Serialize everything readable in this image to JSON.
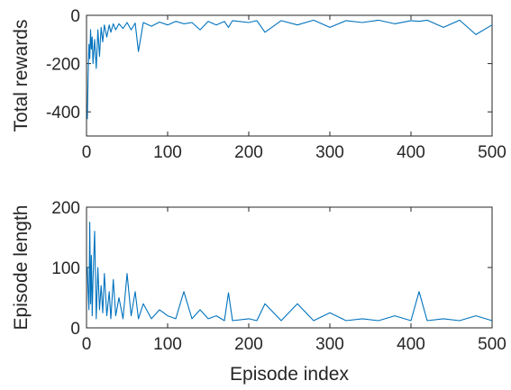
{
  "chart_data": [
    {
      "type": "line",
      "title": "",
      "xlabel": "",
      "ylabel": "Total rewards",
      "xlim": [
        0,
        500
      ],
      "ylim": [
        -500,
        0
      ],
      "xticks": [
        0,
        100,
        200,
        300,
        400,
        500
      ],
      "yticks": [
        -400,
        -200,
        0
      ],
      "grid": false,
      "color": "#0072BD",
      "series": [
        {
          "x": [
            1,
            2,
            3,
            4,
            5,
            6,
            7,
            8,
            10,
            12,
            14,
            16,
            18,
            20,
            22,
            25,
            28,
            30,
            33,
            36,
            40,
            45,
            50,
            55,
            60,
            64,
            70,
            80,
            90,
            100,
            110,
            120,
            130,
            140,
            150,
            160,
            170,
            175,
            180,
            200,
            210,
            220,
            240,
            260,
            280,
            300,
            320,
            340,
            360,
            380,
            400,
            410,
            420,
            440,
            460,
            480,
            500
          ],
          "y": [
            -430,
            -250,
            -120,
            -180,
            -60,
            -140,
            -90,
            -200,
            -100,
            -220,
            -60,
            -170,
            -50,
            -110,
            -40,
            -90,
            -40,
            -70,
            -35,
            -60,
            -35,
            -55,
            -30,
            -60,
            -32,
            -150,
            -30,
            -45,
            -28,
            -40,
            -25,
            -35,
            -30,
            -60,
            -25,
            -40,
            -25,
            -50,
            -22,
            -30,
            -22,
            -70,
            -22,
            -40,
            -20,
            -50,
            -22,
            -30,
            -20,
            -35,
            -22,
            -25,
            -20,
            -50,
            -20,
            -80,
            -40
          ]
        }
      ]
    },
    {
      "type": "line",
      "title": "",
      "xlabel": "Episode index",
      "ylabel": "Episode length",
      "xlim": [
        0,
        500
      ],
      "ylim": [
        0,
        200
      ],
      "xticks": [
        0,
        100,
        200,
        300,
        400,
        500
      ],
      "yticks": [
        0,
        100,
        200
      ],
      "grid": false,
      "color": "#0072BD",
      "series": [
        {
          "x": [
            1,
            2,
            3,
            4,
            5,
            6,
            7,
            8,
            10,
            12,
            14,
            16,
            18,
            20,
            22,
            25,
            28,
            30,
            33,
            36,
            40,
            45,
            50,
            55,
            60,
            64,
            70,
            80,
            90,
            100,
            110,
            120,
            130,
            140,
            150,
            160,
            170,
            175,
            180,
            200,
            210,
            220,
            240,
            260,
            280,
            300,
            320,
            340,
            360,
            380,
            400,
            410,
            420,
            440,
            460,
            480,
            500
          ],
          "y": [
            100,
            60,
            30,
            175,
            40,
            120,
            20,
            80,
            160,
            15,
            100,
            30,
            70,
            25,
            90,
            20,
            60,
            15,
            80,
            20,
            50,
            15,
            90,
            20,
            60,
            15,
            40,
            15,
            30,
            20,
            15,
            60,
            15,
            30,
            15,
            20,
            12,
            58,
            12,
            15,
            12,
            40,
            12,
            40,
            12,
            25,
            12,
            15,
            12,
            20,
            12,
            60,
            12,
            15,
            12,
            20,
            12
          ]
        }
      ]
    }
  ]
}
